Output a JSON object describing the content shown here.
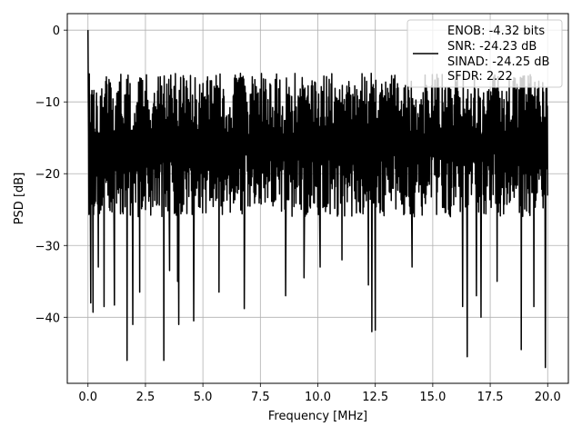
{
  "chart_data": {
    "type": "line",
    "title": "",
    "xlabel": "Frequency [MHz]",
    "ylabel": "PSD [dB]",
    "xlim": [
      -0.9,
      20.9
    ],
    "ylim": [
      -49.2,
      2.3
    ],
    "x_ticks": [
      0.0,
      2.5,
      5.0,
      7.5,
      10.0,
      12.5,
      15.0,
      17.5,
      20.0
    ],
    "x_tick_labels": [
      "0.0",
      "2.5",
      "5.0",
      "7.5",
      "10.0",
      "12.5",
      "15.0",
      "17.5",
      "20.0"
    ],
    "y_ticks": [
      0,
      -10,
      -20,
      -30,
      -40
    ],
    "y_tick_labels": [
      "0",
      "−10",
      "−20",
      "−30",
      "−40"
    ],
    "grid": true,
    "legend_position": "top-right",
    "legend_entries": [
      "ENOB: -4.32 bits",
      "SNR: -24.23 dB",
      "SINAD: -24.25 dB",
      "SFDR: 2.22"
    ],
    "series": [
      {
        "color": "#000000",
        "x_range": [
          0.0,
          20.0
        ],
        "typical_min": -26,
        "typical_max": -6,
        "peak": {
          "x": 0.0,
          "y": 0.0
        },
        "deep_nulls": [
          {
            "x": 0.12,
            "y": -38.0
          },
          {
            "x": 0.22,
            "y": -39.3
          },
          {
            "x": 0.45,
            "y": -33.0
          },
          {
            "x": 0.7,
            "y": -38.5
          },
          {
            "x": 1.15,
            "y": -38.3
          },
          {
            "x": 1.7,
            "y": -46.0
          },
          {
            "x": 1.95,
            "y": -41.0
          },
          {
            "x": 2.25,
            "y": -36.5
          },
          {
            "x": 3.3,
            "y": -46.0
          },
          {
            "x": 3.55,
            "y": -33.5
          },
          {
            "x": 3.9,
            "y": -35.0
          },
          {
            "x": 3.95,
            "y": -41.0
          },
          {
            "x": 4.6,
            "y": -40.5
          },
          {
            "x": 5.7,
            "y": -36.5
          },
          {
            "x": 6.8,
            "y": -38.8
          },
          {
            "x": 8.6,
            "y": -37.0
          },
          {
            "x": 9.4,
            "y": -34.5
          },
          {
            "x": 10.1,
            "y": -33.0
          },
          {
            "x": 11.05,
            "y": -32.0
          },
          {
            "x": 12.2,
            "y": -35.5
          },
          {
            "x": 12.35,
            "y": -42.0
          },
          {
            "x": 12.5,
            "y": -41.8
          },
          {
            "x": 14.1,
            "y": -33.0
          },
          {
            "x": 16.3,
            "y": -38.5
          },
          {
            "x": 16.5,
            "y": -45.5
          },
          {
            "x": 16.9,
            "y": -37.0
          },
          {
            "x": 17.1,
            "y": -40.0
          },
          {
            "x": 17.8,
            "y": -35.0
          },
          {
            "x": 18.85,
            "y": -44.5
          },
          {
            "x": 19.4,
            "y": -38.5
          },
          {
            "x": 19.9,
            "y": -47.0
          }
        ]
      }
    ]
  }
}
